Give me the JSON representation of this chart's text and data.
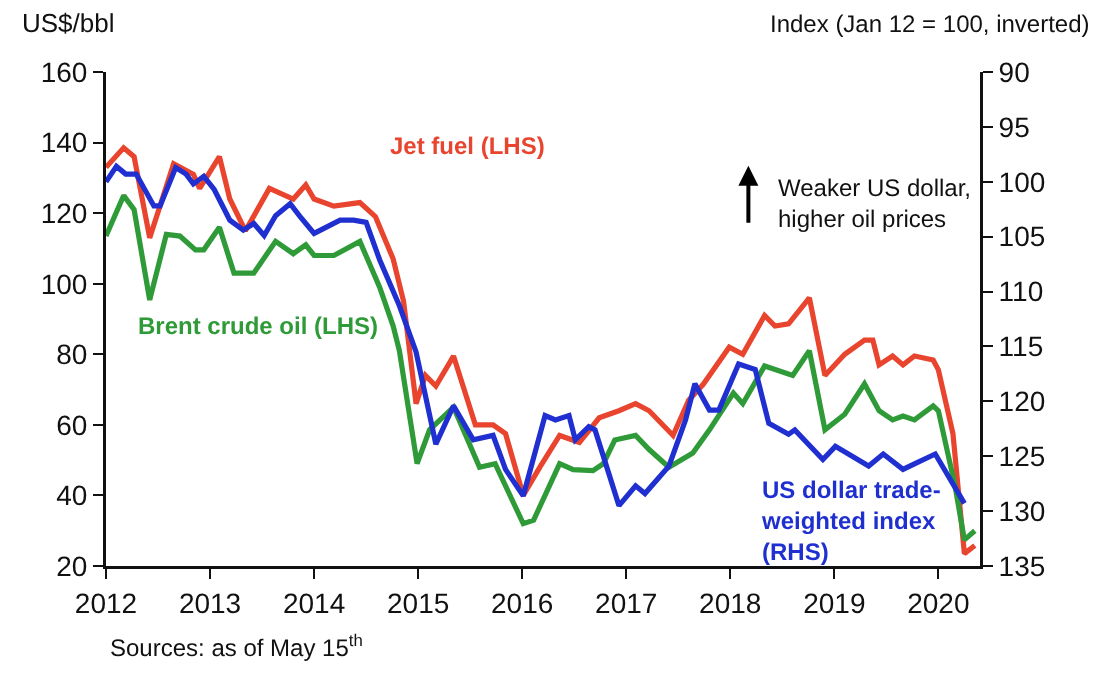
{
  "chart_data": {
    "type": "line",
    "ylabel": "US$/bbl",
    "y2label": "Index (Jan 12 = 100, inverted)",
    "xlim": [
      2012,
      2020.4
    ],
    "xticks": [
      2012,
      2013,
      2014,
      2015,
      2016,
      2017,
      2018,
      2019,
      2020
    ],
    "ylim": [
      20,
      160
    ],
    "yticks": [
      20,
      40,
      60,
      80,
      100,
      120,
      140,
      160
    ],
    "y2lim": [
      135,
      90
    ],
    "y2ticks": [
      90,
      95,
      100,
      105,
      110,
      115,
      120,
      125,
      130,
      135
    ],
    "grid": false,
    "legend": false,
    "marker": "none",
    "line_style": "solid",
    "annotations": [
      "Weaker US dollar, higher oil prices",
      "Sources: as of May 15$^{th}$"
    ],
    "series": [
      {
        "name": "Jet fuel (LHS)",
        "color": "#e8442e",
        "x": [
          2012,
          2012.17,
          2012.27,
          2012.42,
          2012.65,
          2012.84,
          2012.9,
          2013.09,
          2013.19,
          2013.34,
          2013.57,
          2013.8,
          2013.92,
          2014,
          2014.19,
          2014.44,
          2014.59,
          2014.76,
          2014.86,
          2014.98,
          2015.07,
          2015.17,
          2015.34,
          2015.55,
          2015.72,
          2015.84,
          2016.01,
          2016.17,
          2016.36,
          2016.55,
          2016.74,
          2016.93,
          2017.09,
          2017.22,
          2017.45,
          2017.6,
          2017.74,
          2017.99,
          2018.12,
          2018.33,
          2018.43,
          2018.56,
          2018.76,
          2018.91,
          2019.1,
          2019.29,
          2019.37,
          2019.43,
          2019.56,
          2019.66,
          2019.77,
          2019.95,
          2020,
          2020.14,
          2020.25,
          2020.35
        ],
        "values": [
          133,
          138.5,
          136,
          113,
          134,
          131,
          127,
          136,
          124,
          115,
          127,
          124,
          128,
          124,
          122,
          123,
          119,
          107,
          95,
          66,
          74,
          71,
          79.5,
          60,
          60,
          57.5,
          40,
          48,
          57,
          55,
          62,
          64,
          66,
          64,
          57,
          67,
          71.5,
          82,
          80,
          91,
          88,
          88.6,
          96,
          74,
          80,
          84,
          84,
          77,
          79.5,
          77,
          79.5,
          78.4,
          75.6,
          57.5,
          23.5,
          25.8
        ]
      },
      {
        "name": "Brent crude oil (LHS)",
        "color": "#2e9a38",
        "x": [
          2012,
          2012.17,
          2012.27,
          2012.42,
          2012.58,
          2012.71,
          2012.86,
          2012.94,
          2013.09,
          2013.23,
          2013.42,
          2013.63,
          2013.8,
          2013.92,
          2014,
          2014.19,
          2014.44,
          2014.63,
          2014.76,
          2014.82,
          2014.99,
          2015.11,
          2015.34,
          2015.59,
          2015.74,
          2016.01,
          2016.11,
          2016.36,
          2016.49,
          2016.68,
          2016.78,
          2016.89,
          2017.09,
          2017.22,
          2017.41,
          2017.64,
          2017.8,
          2018.03,
          2018.12,
          2018.33,
          2018.6,
          2018.76,
          2018.91,
          2019.1,
          2019.29,
          2019.43,
          2019.56,
          2019.66,
          2019.77,
          2019.95,
          2020,
          2020.16,
          2020.25,
          2020.35
        ],
        "values": [
          113.5,
          125,
          121,
          95.4,
          114,
          113.5,
          109.6,
          109.6,
          116,
          103,
          103,
          112,
          108.5,
          111,
          108,
          108,
          112,
          99,
          88,
          81,
          49,
          58.6,
          65,
          48,
          49,
          32,
          33,
          49,
          47.3,
          47,
          49,
          55.7,
          57,
          53,
          48,
          52,
          58.6,
          69,
          66,
          76.7,
          74,
          81,
          58.6,
          63,
          71.6,
          64,
          61.4,
          62.5,
          61.4,
          65.4,
          64,
          42.7,
          27.4,
          30
        ]
      },
      {
        "name": "US dollar trade-weighted index (RHS)",
        "color": "#1f2fd0",
        "axis": "y2",
        "x": [
          2012,
          2012.1,
          2012.19,
          2012.29,
          2012.46,
          2012.52,
          2012.67,
          2012.77,
          2012.84,
          2012.94,
          2013.04,
          2013.19,
          2013.32,
          2013.42,
          2013.52,
          2013.63,
          2013.77,
          2013.86,
          2014,
          2014.25,
          2014.38,
          2014.5,
          2014.63,
          2014.82,
          2014.98,
          2015.17,
          2015.34,
          2015.53,
          2015.72,
          2015.84,
          2016.01,
          2016.22,
          2016.32,
          2016.45,
          2016.51,
          2016.64,
          2016.7,
          2016.93,
          2017.09,
          2017.18,
          2017.41,
          2017.57,
          2017.66,
          2017.8,
          2017.89,
          2018.08,
          2018.24,
          2018.37,
          2018.56,
          2018.62,
          2018.89,
          2019.01,
          2019.33,
          2019.47,
          2019.66,
          2019.77,
          2019.97,
          2020.25
        ],
        "values": [
          100,
          98.6,
          99.3,
          99.3,
          102.2,
          102.2,
          98.7,
          99.3,
          100.2,
          99.5,
          100.7,
          103.5,
          104.4,
          103.8,
          104.9,
          103.1,
          102,
          103.1,
          104.7,
          103.5,
          103.5,
          103.7,
          107.1,
          111.3,
          115.5,
          123.9,
          120.4,
          123.5,
          123.1,
          126.2,
          128.6,
          121.3,
          121.7,
          121.3,
          123.5,
          122.3,
          122.6,
          129.5,
          127.7,
          128.4,
          125.9,
          121.7,
          118.4,
          120.8,
          120.8,
          116.6,
          117.1,
          122,
          123,
          122.6,
          125.3,
          124.1,
          125.9,
          124.8,
          126.2,
          125.7,
          124.8,
          129.3
        ]
      }
    ]
  }
}
